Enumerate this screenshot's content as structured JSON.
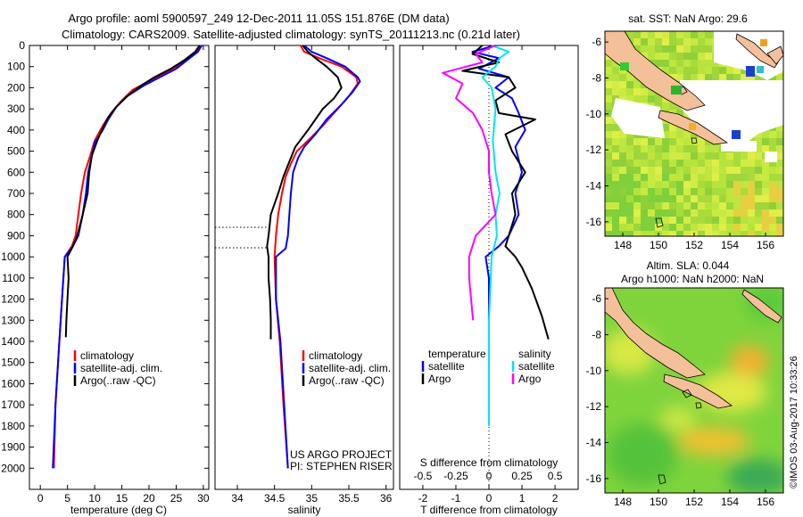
{
  "header": {
    "title_line1": "Argo profile: aoml 5900597_249 12-Dec-2011 11.05S 151.876E (DM data)",
    "title_line2": "Climatology: CARS2009. Satellite-adjusted climatology: synTS_20111213.nc (0.21d later)"
  },
  "colors": {
    "climatology": "#ff0000",
    "satellite": "#0000ff",
    "argo": "#000000",
    "argo_s": "#ff00ff",
    "satellite_s": "#00e5ee",
    "land": "#f4c09a"
  },
  "chart_data": [
    {
      "type": "line",
      "title": "",
      "xlabel": "temperature (deg C)",
      "ylabel": "",
      "xlim": [
        -2,
        31
      ],
      "ylim": [
        2100,
        0
      ],
      "xticks": [
        0,
        5,
        10,
        15,
        20,
        25,
        30
      ],
      "yticks": [
        0,
        100,
        200,
        300,
        400,
        500,
        600,
        700,
        800,
        900,
        1000,
        1100,
        1200,
        1300,
        1400,
        1500,
        1600,
        1700,
        1800,
        1900,
        2000
      ],
      "legend": [
        "climatology",
        "satellite-adj. clim.",
        "Argo(..raw -QC)"
      ],
      "series": [
        {
          "name": "climatology",
          "color": "#ff0000",
          "points": [
            [
              29.5,
              0
            ],
            [
              29,
              25
            ],
            [
              27,
              60
            ],
            [
              25,
              100
            ],
            [
              23,
              130
            ],
            [
              20,
              170
            ],
            [
              17,
              210
            ],
            [
              15,
              260
            ],
            [
              13,
              320
            ],
            [
              11.5,
              380
            ],
            [
              10,
              450
            ],
            [
              9.2,
              520
            ],
            [
              8.2,
              600
            ],
            [
              7.5,
              700
            ],
            [
              7,
              800
            ],
            [
              6.5,
              900
            ],
            [
              5.8,
              950
            ],
            [
              4.5,
              1000
            ],
            [
              4,
              1200
            ],
            [
              3.5,
              1400
            ],
            [
              2.8,
              1700
            ],
            [
              2.5,
              2000
            ]
          ]
        },
        {
          "name": "satellite-adj. clim.",
          "color": "#0000ff",
          "points": [
            [
              29.7,
              0
            ],
            [
              29,
              30
            ],
            [
              27,
              70
            ],
            [
              25,
              110
            ],
            [
              22,
              150
            ],
            [
              19,
              190
            ],
            [
              16,
              240
            ],
            [
              14,
              290
            ],
            [
              12.5,
              350
            ],
            [
              11.5,
              400
            ],
            [
              10,
              460
            ],
            [
              9.5,
              520
            ],
            [
              8.8,
              600
            ],
            [
              8.4,
              700
            ],
            [
              7.8,
              800
            ],
            [
              7,
              900
            ],
            [
              6,
              950
            ],
            [
              4.5,
              1000
            ],
            [
              4,
              1200
            ],
            [
              3.5,
              1400
            ],
            [
              2.8,
              1700
            ],
            [
              2.3,
              2000
            ]
          ]
        },
        {
          "name": "Argo(..raw -QC)",
          "color": "#000000",
          "points": [
            [
              29.3,
              0
            ],
            [
              28.5,
              30
            ],
            [
              26.5,
              70
            ],
            [
              24,
              110
            ],
            [
              21,
              150
            ],
            [
              18.5,
              190
            ],
            [
              16,
              240
            ],
            [
              14,
              290
            ],
            [
              12.5,
              340
            ],
            [
              11.5,
              390
            ],
            [
              10.5,
              450
            ],
            [
              9.5,
              520
            ],
            [
              9,
              600
            ],
            [
              8.7,
              700
            ],
            [
              7.8,
              800
            ],
            [
              6.8,
              900
            ],
            [
              6,
              950
            ],
            [
              5,
              1000
            ],
            [
              5.2,
              1100
            ],
            [
              5,
              1200
            ],
            [
              4.8,
              1300
            ],
            [
              4.7,
              1380
            ]
          ]
        }
      ]
    },
    {
      "type": "line",
      "title": "",
      "xlabel": "salinity",
      "ylabel": "",
      "xlim": [
        33.7,
        36.1
      ],
      "ylim": [
        2100,
        0
      ],
      "xticks": [
        34,
        34.5,
        35,
        35.5,
        36
      ],
      "legend": [
        "climatology",
        "satellite-adj. clim.",
        "Argo(..raw -QC)"
      ],
      "annotation": [
        "US ARGO PROJECT",
        "PI: STEPHEN RISER"
      ],
      "series": [
        {
          "name": "climatology",
          "color": "#ff0000",
          "points": [
            [
              34.85,
              0
            ],
            [
              34.9,
              30
            ],
            [
              35.1,
              60
            ],
            [
              35.4,
              100
            ],
            [
              35.6,
              150
            ],
            [
              35.62,
              180
            ],
            [
              35.5,
              240
            ],
            [
              35.35,
              300
            ],
            [
              35.15,
              380
            ],
            [
              34.95,
              450
            ],
            [
              34.8,
              500
            ],
            [
              34.72,
              560
            ],
            [
              34.65,
              620
            ],
            [
              34.6,
              700
            ],
            [
              34.55,
              800
            ],
            [
              34.52,
              900
            ],
            [
              34.5,
              1000
            ],
            [
              34.52,
              1200
            ],
            [
              34.57,
              1400
            ],
            [
              34.62,
              1700
            ],
            [
              34.68,
              2000
            ]
          ]
        },
        {
          "name": "satellite-adj. clim.",
          "color": "#0000ff",
          "points": [
            [
              34.9,
              0
            ],
            [
              35,
              30
            ],
            [
              35.2,
              60
            ],
            [
              35.45,
              100
            ],
            [
              35.62,
              150
            ],
            [
              35.65,
              170
            ],
            [
              35.55,
              220
            ],
            [
              35.4,
              280
            ],
            [
              35.2,
              350
            ],
            [
              35.05,
              420
            ],
            [
              34.9,
              480
            ],
            [
              34.82,
              530
            ],
            [
              34.75,
              600
            ],
            [
              34.72,
              700
            ],
            [
              34.7,
              800
            ],
            [
              34.68,
              900
            ],
            [
              34.65,
              960
            ],
            [
              34.52,
              1000
            ],
            [
              34.52,
              1200
            ],
            [
              34.58,
              1400
            ],
            [
              34.63,
              1700
            ],
            [
              34.68,
              2000
            ]
          ]
        },
        {
          "name": "Argo(..raw -QC)",
          "color": "#000000",
          "points": [
            [
              34.88,
              0
            ],
            [
              34.95,
              30
            ],
            [
              35.05,
              60
            ],
            [
              35.2,
              100
            ],
            [
              35.35,
              150
            ],
            [
              35.4,
              200
            ],
            [
              35.3,
              250
            ],
            [
              35.15,
              300
            ],
            [
              35.05,
              350
            ],
            [
              34.95,
              400
            ],
            [
              34.78,
              480
            ],
            [
              34.7,
              550
            ],
            [
              34.62,
              620
            ],
            [
              34.55,
              700
            ],
            [
              34.45,
              800
            ],
            [
              34.42,
              900
            ],
            [
              34.4,
              950
            ],
            [
              34.42,
              1000
            ],
            [
              34.42,
              1100
            ],
            [
              34.44,
              1200
            ],
            [
              34.45,
              1300
            ],
            [
              34.45,
              1390
            ]
          ]
        }
      ]
    },
    {
      "type": "line",
      "title": "",
      "xlabel": "T difference from climatology",
      "xlabel_top": "S difference from climatology",
      "ylabel": "",
      "xlim": [
        -2.7,
        2.7
      ],
      "ylim": [
        2100,
        0
      ],
      "xticks": [
        -2,
        -1,
        0,
        1,
        2
      ],
      "xticks_top": [
        -0.5,
        -0.25,
        0,
        0.25,
        0.5
      ],
      "xticks_top_labels": [
        "-0.5",
        "-0.25",
        "0",
        "0.25",
        "0.5"
      ],
      "legend": [
        "temperature",
        "satellite",
        "Argo",
        "salinity",
        "satellite",
        "Argo"
      ],
      "series": [
        {
          "name": "temperature satellite",
          "color": "#0000ff",
          "points": [
            [
              0.2,
              0
            ],
            [
              -0.5,
              30
            ],
            [
              0.3,
              60
            ],
            [
              -0.3,
              110
            ],
            [
              0.6,
              150
            ],
            [
              0.2,
              200
            ],
            [
              0.7,
              250
            ],
            [
              0.9,
              320
            ],
            [
              1.1,
              400
            ],
            [
              0.8,
              480
            ],
            [
              1.0,
              600
            ],
            [
              0.8,
              700
            ],
            [
              0.9,
              800
            ],
            [
              0.6,
              900
            ],
            [
              0.3,
              950
            ],
            [
              -0.1,
              1000
            ],
            [
              0,
              1100
            ],
            [
              0,
              1300
            ]
          ]
        },
        {
          "name": "temperature Argo",
          "color": "#000000",
          "points": [
            [
              -0.2,
              0
            ],
            [
              -0.5,
              40
            ],
            [
              0.3,
              80
            ],
            [
              -0.8,
              120
            ],
            [
              0.6,
              150
            ],
            [
              0.8,
              200
            ],
            [
              0.2,
              260
            ],
            [
              0.3,
              320
            ],
            [
              1.4,
              350
            ],
            [
              0.5,
              420
            ],
            [
              0.7,
              500
            ],
            [
              1.1,
              600
            ],
            [
              0.7,
              700
            ],
            [
              0.8,
              800
            ],
            [
              0.6,
              900
            ],
            [
              0.5,
              950
            ],
            [
              0.8,
              1000
            ],
            [
              1.0,
              1050
            ],
            [
              1.3,
              1150
            ],
            [
              1.6,
              1280
            ],
            [
              1.8,
              1390
            ]
          ]
        },
        {
          "name": "salinity satellite",
          "color": "#00e5ee",
          "points": [
            [
              0.02,
              0
            ],
            [
              0.15,
              30
            ],
            [
              0.08,
              60
            ],
            [
              0.05,
              100
            ],
            [
              -0.05,
              150
            ],
            [
              0.02,
              200
            ],
            [
              0.05,
              300
            ],
            [
              0.03,
              450
            ],
            [
              0.05,
              600
            ],
            [
              0.08,
              700
            ],
            [
              0.05,
              800
            ],
            [
              0.06,
              900
            ],
            [
              0.02,
              1000
            ],
            [
              0,
              1300
            ],
            [
              0,
              1500
            ],
            [
              0,
              1800
            ]
          ]
        },
        {
          "name": "salinity Argo",
          "color": "#ff00ff",
          "points": [
            [
              0.05,
              0
            ],
            [
              -0.1,
              40
            ],
            [
              -0.05,
              80
            ],
            [
              -0.35,
              130
            ],
            [
              -0.2,
              180
            ],
            [
              -0.25,
              250
            ],
            [
              -0.12,
              320
            ],
            [
              -0.05,
              400
            ],
            [
              0,
              500
            ],
            [
              0,
              600
            ],
            [
              0.02,
              700
            ],
            [
              0.05,
              800
            ],
            [
              -0.1,
              900
            ],
            [
              -0.15,
              1000
            ],
            [
              -0.15,
              1100
            ],
            [
              -0.12,
              1300
            ]
          ]
        }
      ]
    },
    {
      "type": "heatmap",
      "title": "sat. SST: NaN Argo: 29.6",
      "xlim": [
        147,
        157
      ],
      "ylim": [
        -16.8,
        -5.4
      ],
      "xticks": [
        148,
        150,
        152,
        154,
        156
      ],
      "yticks": [
        -6,
        -8,
        -10,
        -12,
        -14,
        -16
      ]
    },
    {
      "type": "heatmap",
      "title": "Altim. SLA: 0.044",
      "subtitle": "Argo h1000: NaN h2000: NaN",
      "xlim": [
        147,
        157
      ],
      "ylim": [
        -16.8,
        -5.4
      ],
      "xticks": [
        148,
        150,
        152,
        154,
        156
      ],
      "yticks": [
        -6,
        -8,
        -10,
        -12,
        -14,
        -16
      ]
    }
  ],
  "footer": {
    "imos_stamp": "©IMOS 03-Aug-2017 10:33:26"
  }
}
